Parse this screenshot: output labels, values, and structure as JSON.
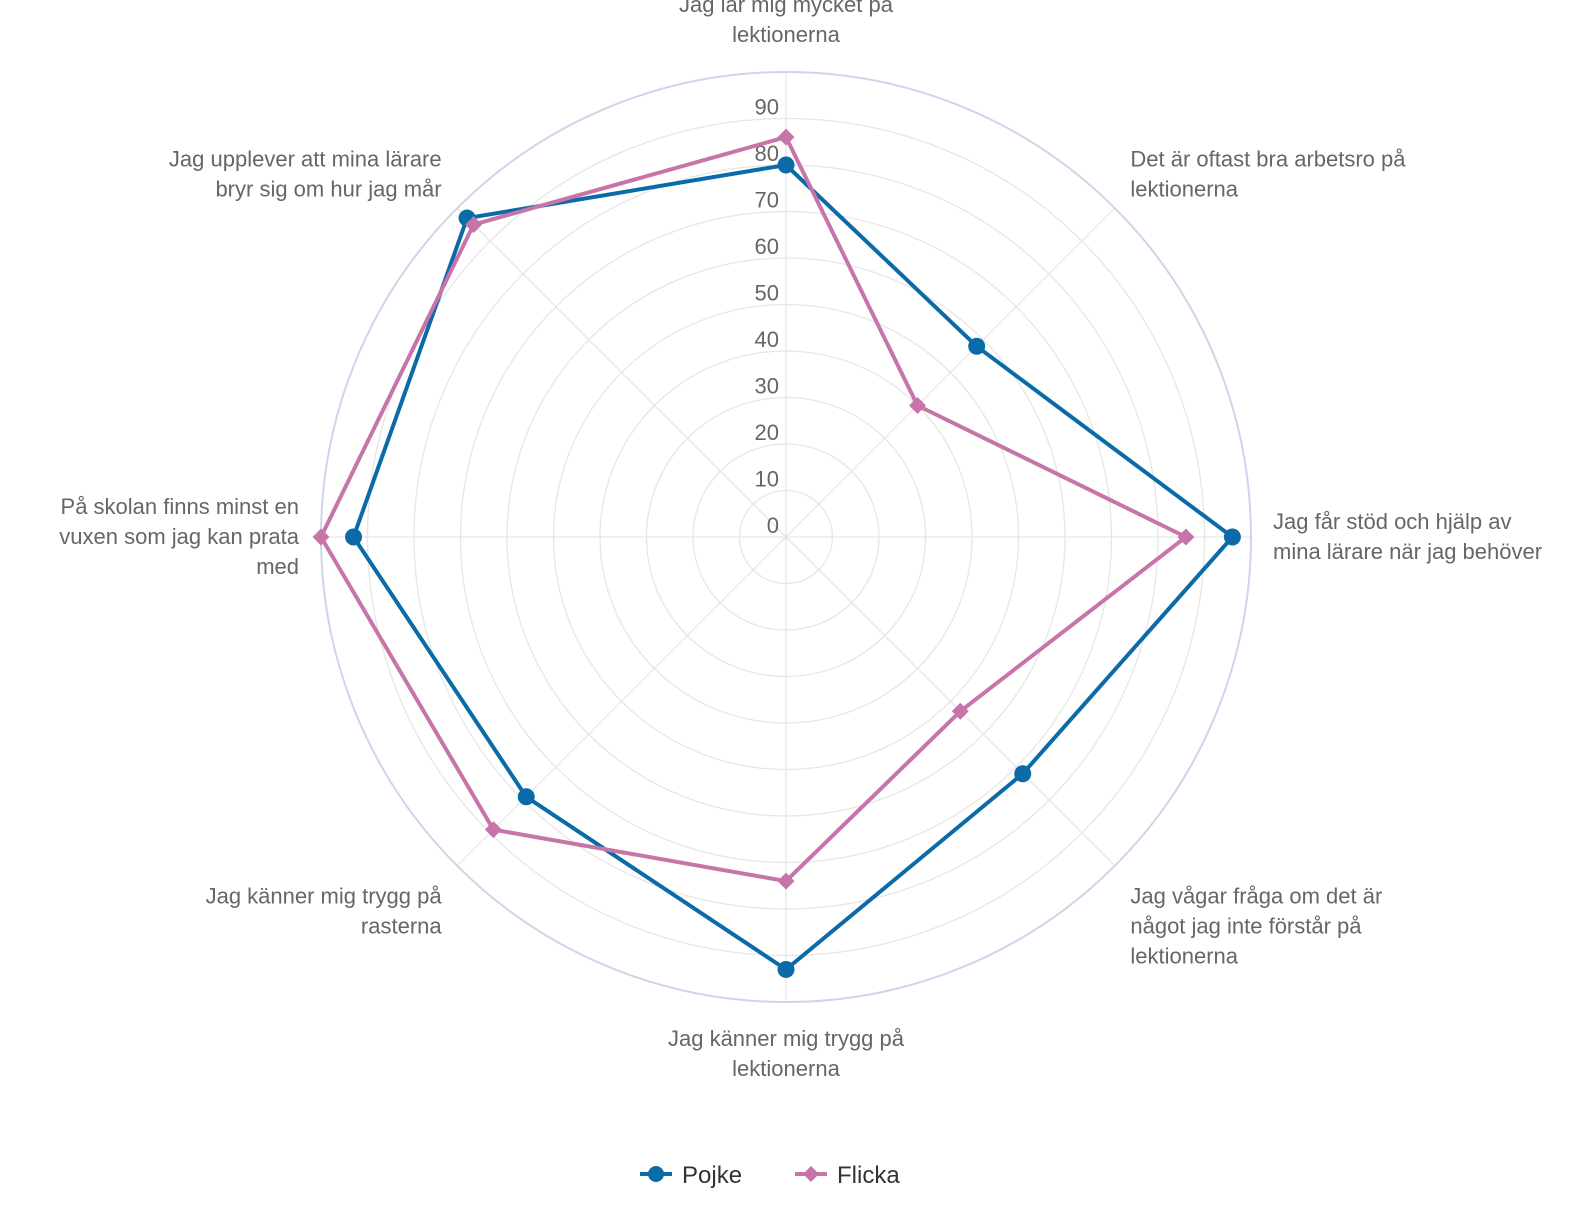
{
  "chart_data": {
    "type": "radar",
    "categories": [
      [
        "Jag lär mig mycket på",
        "lektionerna"
      ],
      [
        "Det är oftast bra arbetsro på",
        "lektionerna"
      ],
      [
        "Jag får stöd och hjälp av",
        "mina lärare när jag behöver"
      ],
      [
        "Jag vågar fråga om det är",
        "något jag inte förstår på",
        "lektionerna"
      ],
      [
        "Jag känner mig trygg på",
        "lektionerna"
      ],
      [
        "Jag känner mig trygg på",
        "rasterna"
      ],
      [
        "På skolan finns minst en",
        "vuxen som jag kan prata",
        "med"
      ],
      [
        "Jag upplever att mina lärare",
        "bryr sig om hur jag mår"
      ]
    ],
    "rlim": [
      0,
      100
    ],
    "ticks": [
      0,
      10,
      20,
      30,
      40,
      50,
      60,
      70,
      80,
      90
    ],
    "series": [
      {
        "name": "Pojke",
        "color": "#0b6aa8",
        "marker": "circle",
        "values": [
          80,
          58,
          96,
          72,
          93,
          79,
          93,
          97
        ]
      },
      {
        "name": "Flicka",
        "color": "#c775a8",
        "marker": "diamond",
        "values": [
          86,
          40,
          86,
          53,
          74,
          89,
          100,
          95
        ]
      }
    ],
    "legend_position": "bottom"
  }
}
